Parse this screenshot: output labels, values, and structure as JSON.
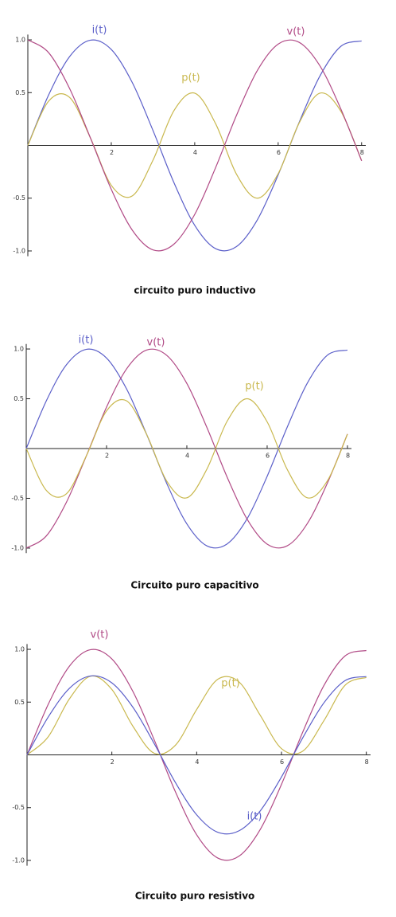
{
  "chart_data": [
    {
      "type": "line",
      "title": "circuito puro inductivo",
      "x": [
        0,
        0.5,
        1,
        1.5,
        2,
        2.5,
        3,
        3.5,
        4,
        4.5,
        5,
        5.5,
        6,
        6.5,
        7,
        7.5,
        8
      ],
      "xlim": [
        0,
        8.1
      ],
      "ylim": [
        -1.05,
        1.05
      ],
      "xticks": [
        2,
        4,
        6,
        8
      ],
      "yticks": [
        {
          "value": -1,
          "label": "-1.0"
        },
        -0.5,
        0.5,
        {
          "value": 1,
          "label": "1.0"
        }
      ],
      "series": [
        {
          "name": "i(t)",
          "color": "#5b5fc9",
          "values": [
            0,
            0.479,
            0.841,
            0.997,
            0.909,
            0.598,
            0.141,
            -0.351,
            -0.757,
            -0.978,
            -0.959,
            -0.706,
            -0.279,
            0.215,
            0.657,
            0.938,
            0.989
          ]
        },
        {
          "name": "p(t)",
          "color": "#c9b84e",
          "values": [
            0,
            0.42,
            0.455,
            0.071,
            -0.378,
            -0.479,
            -0.14,
            0.328,
            0.495,
            0.206,
            -0.272,
            -0.5,
            -0.268,
            0.21,
            0.495,
            0.325,
            -0.144
          ]
        },
        {
          "name": "v(t)",
          "color": "#b14a86",
          "values": [
            1,
            0.878,
            0.54,
            0.071,
            -0.416,
            -0.801,
            -0.99,
            -0.936,
            -0.654,
            -0.211,
            0.284,
            0.709,
            0.96,
            0.977,
            0.754,
            0.347,
            -0.146
          ]
        }
      ]
    },
    {
      "type": "line",
      "title": "Circuito puro capacitivo",
      "x": [
        0,
        0.5,
        1,
        1.5,
        2,
        2.5,
        3,
        3.5,
        4,
        4.5,
        5,
        5.5,
        6,
        6.5,
        7,
        7.5,
        8
      ],
      "xlim": [
        0,
        8.1
      ],
      "ylim": [
        -1.05,
        1.05
      ],
      "xticks": [
        2,
        4,
        6,
        8
      ],
      "yticks": [
        {
          "value": -1,
          "label": "-1.0"
        },
        -0.5,
        0.5,
        {
          "value": 1,
          "label": "1.0"
        }
      ],
      "series": [
        {
          "name": "i(t)",
          "color": "#5b5fc9",
          "values": [
            0,
            0.479,
            0.841,
            0.997,
            0.909,
            0.598,
            0.141,
            -0.351,
            -0.757,
            -0.978,
            -0.959,
            -0.706,
            -0.279,
            0.215,
            0.657,
            0.938,
            0.989
          ]
        },
        {
          "name": "v(t)",
          "color": "#b14a86",
          "values": [
            -1,
            -0.878,
            -0.54,
            -0.071,
            0.416,
            0.801,
            0.99,
            0.936,
            0.654,
            0.211,
            -0.284,
            -0.709,
            -0.96,
            -0.977,
            -0.754,
            -0.347,
            0.146
          ]
        },
        {
          "name": "p(t)",
          "color": "#c9b84e",
          "values": [
            0,
            -0.42,
            -0.455,
            -0.071,
            0.378,
            0.479,
            0.14,
            -0.328,
            -0.495,
            -0.206,
            0.272,
            0.5,
            0.268,
            -0.21,
            -0.495,
            -0.325,
            0.144
          ]
        }
      ]
    },
    {
      "type": "line",
      "title": "Circuito puro resistivo",
      "x": [
        0,
        0.5,
        1,
        1.5,
        2,
        2.5,
        3,
        3.5,
        4,
        4.5,
        5,
        5.5,
        6,
        6.5,
        7,
        7.5,
        8
      ],
      "xlim": [
        0,
        8.1
      ],
      "ylim": [
        -1.05,
        1.05
      ],
      "xticks": [
        2,
        4,
        6,
        8
      ],
      "yticks": [
        {
          "value": -1,
          "label": "-1.0"
        },
        -0.5,
        0.5,
        {
          "value": 1,
          "label": "1.0"
        }
      ],
      "series": [
        {
          "name": "v(t)",
          "color": "#b14a86",
          "values": [
            0,
            0.479,
            0.841,
            0.997,
            0.909,
            0.598,
            0.141,
            -0.351,
            -0.757,
            -0.978,
            -0.959,
            -0.706,
            -0.279,
            0.215,
            0.657,
            0.938,
            0.989
          ]
        },
        {
          "name": "p(t)",
          "color": "#c9b84e",
          "values": [
            0,
            0.172,
            0.531,
            0.746,
            0.62,
            0.269,
            0.015,
            0.092,
            0.43,
            0.717,
            0.69,
            0.374,
            0.059,
            0.035,
            0.324,
            0.66,
            0.734
          ]
        },
        {
          "name": "i(t)",
          "color": "#5b5fc9",
          "values": [
            0,
            0.359,
            0.631,
            0.748,
            0.682,
            0.449,
            0.106,
            -0.263,
            -0.568,
            -0.734,
            -0.719,
            -0.53,
            -0.209,
            0.161,
            0.493,
            0.704,
            0.742
          ]
        }
      ]
    }
  ]
}
